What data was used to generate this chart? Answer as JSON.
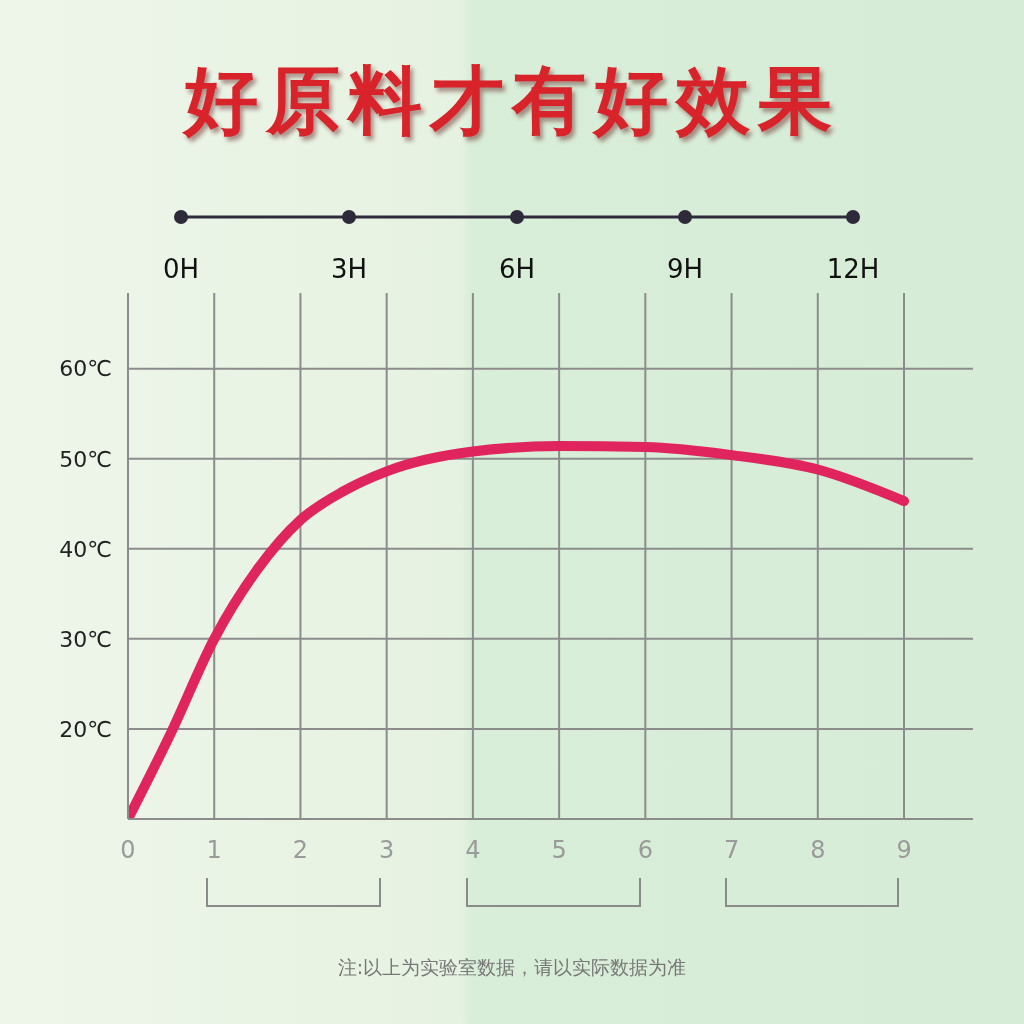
{
  "chart_data": {
    "type": "line",
    "title": "好原料才有好效果",
    "x": [
      0,
      0.5,
      1,
      1.5,
      2,
      2.5,
      3,
      4,
      5,
      6,
      7,
      8,
      9
    ],
    "series": [
      {
        "color": "#e0245e",
        "values": [
          10,
          19.6,
          30,
          37.7,
          43.2,
          46.4,
          48.6,
          50.8,
          51.4,
          51.3,
          50.4,
          48.8,
          45.3
        ]
      }
    ],
    "xlim": [
      0,
      9.8
    ],
    "xticks": [
      0,
      1,
      2,
      3,
      4,
      5,
      6,
      7,
      8,
      9
    ],
    "ylim": [
      10,
      68.4
    ],
    "yticks": [
      {
        "value": 10,
        "label": null
      },
      {
        "value": 20,
        "label": "20℃"
      },
      {
        "value": 30,
        "label": "30℃"
      },
      {
        "value": 40,
        "label": "40℃"
      },
      {
        "value": 50,
        "label": "50℃"
      },
      {
        "value": 60,
        "label": "60℃"
      }
    ],
    "x2lim": [
      0,
      12
    ],
    "x2ticks": [
      {
        "value": 0,
        "label": "0H"
      },
      {
        "value": 3,
        "label": "3H"
      },
      {
        "value": 6,
        "label": "6H"
      },
      {
        "value": 9,
        "label": "9H"
      },
      {
        "value": 12,
        "label": "12H"
      }
    ],
    "grid": true,
    "marker": "none",
    "line_style": "solid",
    "annotations": [
      "注:以上为实验室数据，请以实际数据为准"
    ]
  }
}
